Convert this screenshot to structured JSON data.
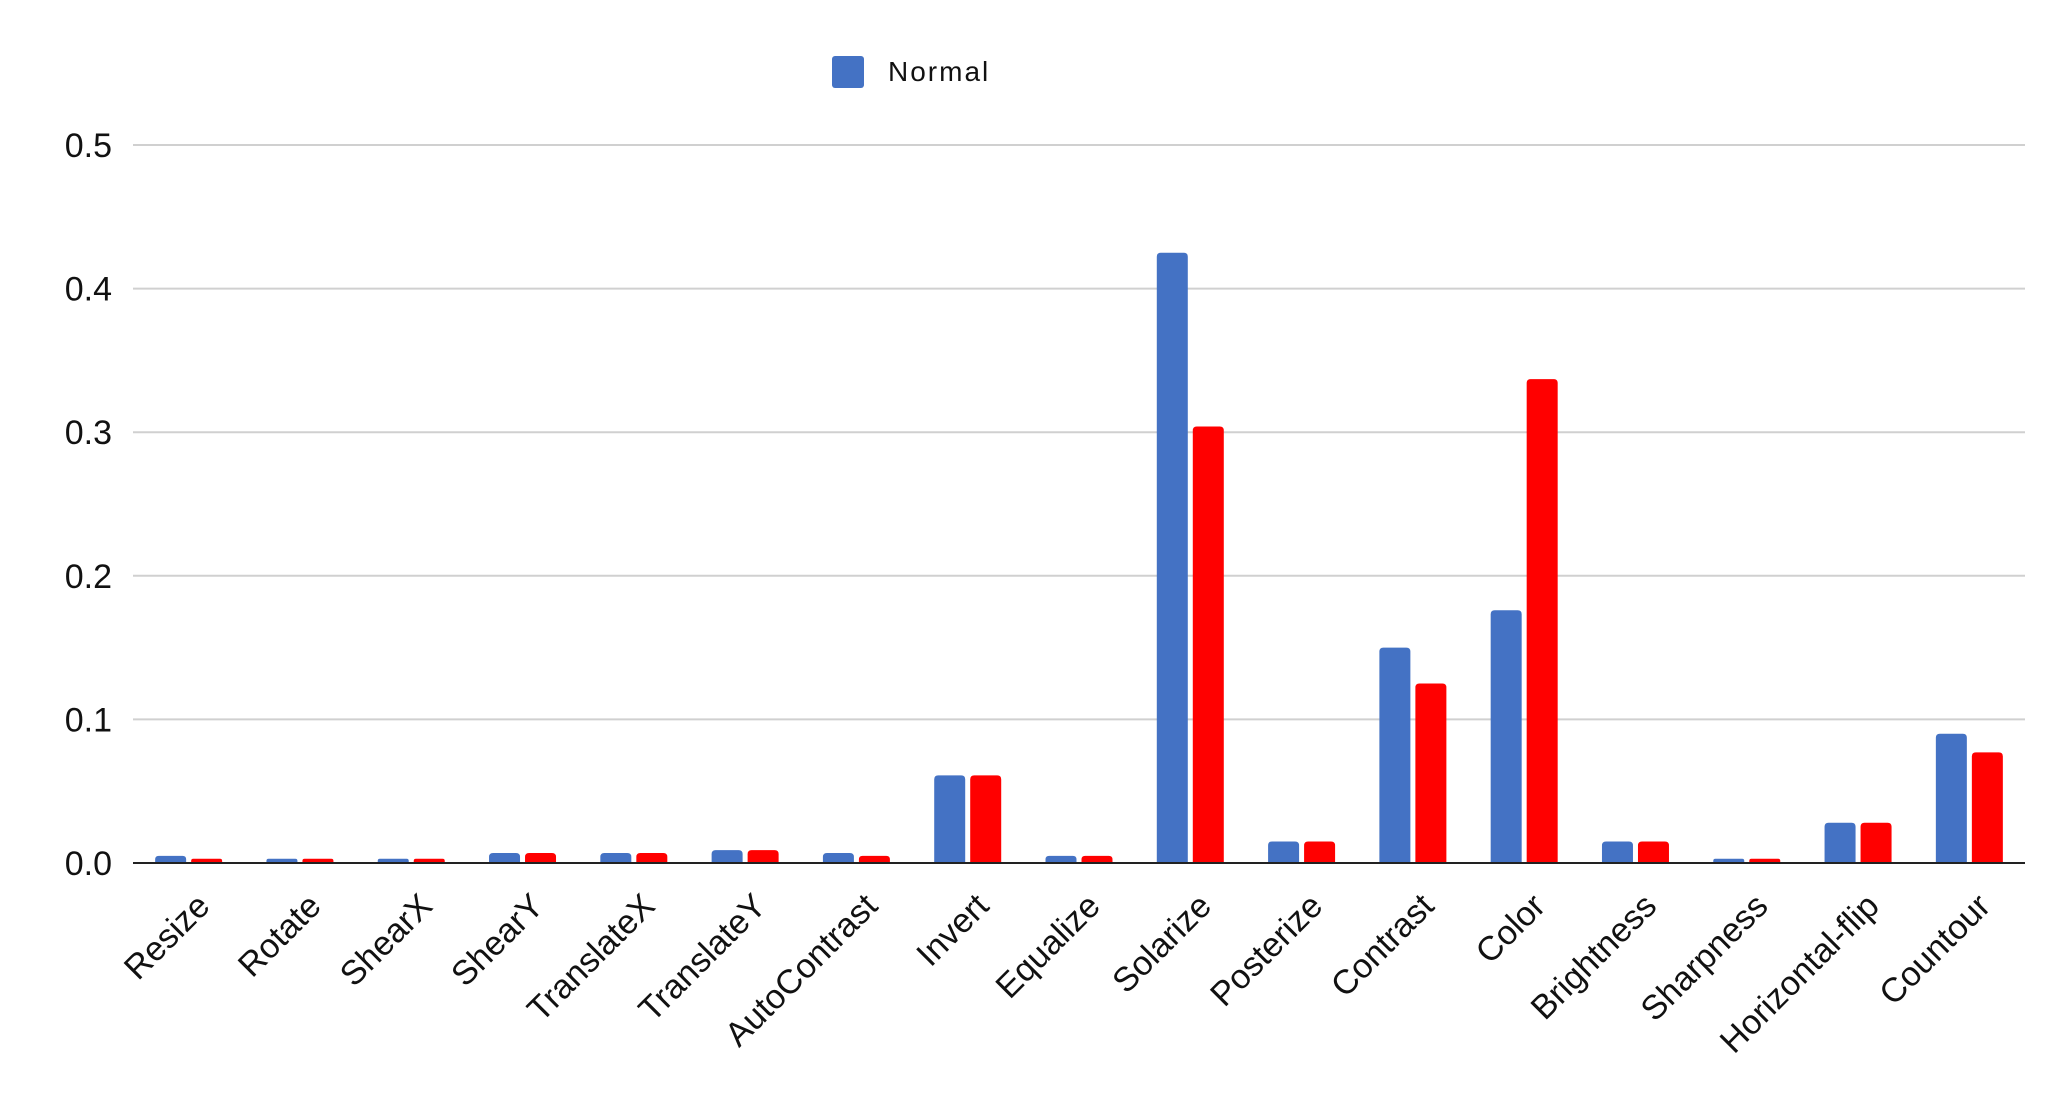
{
  "chart_data": {
    "type": "bar",
    "categories": [
      "Resize",
      "Rotate",
      "ShearX",
      "ShearY",
      "TranslateX",
      "TranslateY",
      "AutoContrast",
      "Invert",
      "Equalize",
      "Solarize",
      "Posterize",
      "Contrast",
      "Color",
      "Brightness",
      "Sharpness",
      "Horizontal-flip",
      "Countour"
    ],
    "series": [
      {
        "name": "Normal",
        "color": "#4472C4",
        "values": [
          0.005,
          0.003,
          0.003,
          0.007,
          0.007,
          0.009,
          0.007,
          0.061,
          0.005,
          0.425,
          0.015,
          0.15,
          0.176,
          0.015,
          0.003,
          0.028,
          0.09
        ]
      },
      {
        "color": "#FF0000",
        "values": [
          0.003,
          0.003,
          0.003,
          0.007,
          0.007,
          0.009,
          0.005,
          0.061,
          0.005,
          0.304,
          0.015,
          0.125,
          0.337,
          0.015,
          0.003,
          0.028,
          0.077
        ]
      }
    ],
    "yticks": [
      "0.0",
      "0.1",
      "0.2",
      "0.3",
      "0.4",
      "0.5"
    ],
    "ylim": [
      0,
      0.5
    ],
    "grid": true,
    "legend": "top-center"
  }
}
